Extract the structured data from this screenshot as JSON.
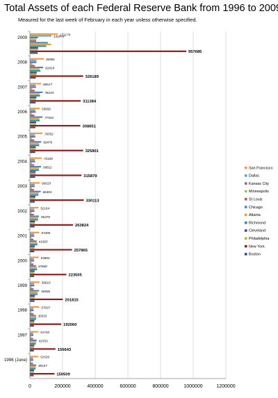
{
  "title": "Total Assets of each Federal Reserve Bank from 1996 to 2009.",
  "subtitle": "Meaured for the last week of February in each year unless otherwise specified.",
  "chart_data": {
    "type": "bar",
    "orientation": "horizontal",
    "categories": [
      "2009",
      "2008",
      "2007",
      "2006",
      "2005",
      "2004",
      "2003",
      "2002",
      "2001",
      "2000",
      "1999",
      "1998",
      "1997",
      "1996 (June)"
    ],
    "x_ticks": [
      "0",
      "200000",
      "400000",
      "600000",
      "800000",
      "1000000",
      "1200000"
    ],
    "xlim": [
      0,
      1200000
    ],
    "grid": true,
    "legend_position": "right",
    "series": [
      {
        "name": "San Francisco",
        "color": "#F79646",
        "values": [
          171174,
          85981,
          68617,
          59656,
          76552,
          72109,
          60019,
          52164,
          57495,
          53863,
          58610,
          57037,
          51743,
          51539
        ]
      },
      {
        "name": "Dallas",
        "color": "#4BACC6",
        "values": [
          131979,
          40000,
          35000,
          33000,
          31000,
          30000,
          29000,
          26000,
          25000,
          24000,
          26000,
          21000,
          20000,
          19000
        ]
      },
      {
        "name": "Kansas City",
        "color": "#8064A2",
        "values": [
          50000,
          40000,
          38000,
          36000,
          33000,
          32000,
          29000,
          28000,
          27000,
          26000,
          27000,
          23000,
          22000,
          21000
        ]
      },
      {
        "name": "Minneapolis",
        "color": "#9BBB59",
        "values": [
          40000,
          16000,
          15000,
          14000,
          14000,
          13000,
          12000,
          11000,
          10000,
          10000,
          11000,
          9000,
          8000,
          8000
        ]
      },
      {
        "name": "St Louis",
        "color": "#C0504D",
        "values": [
          38000,
          30000,
          29000,
          28000,
          27000,
          26000,
          25000,
          24000,
          22000,
          22000,
          23000,
          21000,
          20000,
          19000
        ]
      },
      {
        "name": "Chicago",
        "color": "#4F81BD",
        "values": [
          110000,
          81819,
          78234,
          77543,
          69476,
          68811,
          66404,
          55379,
          41565,
          37668,
          56556,
          36533,
          41553,
          38167
        ]
      },
      {
        "name": "Atlanta",
        "color": "#E3A03F",
        "values": [
          130000,
          60000,
          60000,
          58000,
          56000,
          55000,
          54000,
          50000,
          46000,
          44000,
          45000,
          40000,
          38000,
          36000
        ]
      },
      {
        "name": "Richmond",
        "color": "#1F8FA9",
        "values": [
          100000,
          65000,
          62000,
          60000,
          57000,
          55000,
          52000,
          50000,
          46000,
          44000,
          48000,
          38000,
          36000,
          34000
        ]
      },
      {
        "name": "Cleveland",
        "color": "#4B3D7A",
        "values": [
          50000,
          42000,
          40000,
          38000,
          36000,
          35000,
          34000,
          32000,
          30000,
          29000,
          31000,
          28000,
          27000,
          26000
        ]
      },
      {
        "name": "Philadelphia",
        "color": "#B0B040",
        "values": [
          50000,
          40000,
          38000,
          37000,
          35000,
          34000,
          32000,
          30000,
          28000,
          27000,
          29000,
          26000,
          25000,
          24000
        ]
      },
      {
        "name": "New York",
        "color": "#8B1A1A",
        "values": [
          957685,
          326189,
          311384,
          308651,
          325801,
          315879,
          330113,
          263824,
          257865,
          223505,
          201815,
          192060,
          156643,
          150509
        ]
      },
      {
        "name": "Boston",
        "color": "#2B4C7E",
        "values": [
          48000,
          36000,
          35000,
          34000,
          33000,
          32000,
          30000,
          29000,
          27000,
          26000,
          28000,
          25000,
          24000,
          23000
        ]
      }
    ],
    "data_labels": {
      "San Francisco": [
        "171174",
        "85981",
        "68617",
        "59656",
        "76552",
        "72109",
        "60019",
        "52164",
        "57495",
        "53863",
        "58610",
        "57037",
        "51743",
        "51539"
      ],
      "Dallas": [
        "131979",
        "",
        "",
        "",
        "",
        "",
        "",
        "",
        "",
        "",
        "",
        "",
        "",
        ""
      ],
      "Chicago": [
        "",
        "81819",
        "78234",
        "77543",
        "69476",
        "68811",
        "66404",
        "55379",
        "41565",
        "37668",
        "56556",
        "36533",
        "41553",
        "38167"
      ],
      "New York": [
        "957685",
        "326189",
        "311384",
        "308651",
        "325801",
        "315879",
        "330113",
        "263824",
        "257865",
        "223505",
        "201815",
        "192060",
        "156643",
        "150509"
      ]
    }
  }
}
